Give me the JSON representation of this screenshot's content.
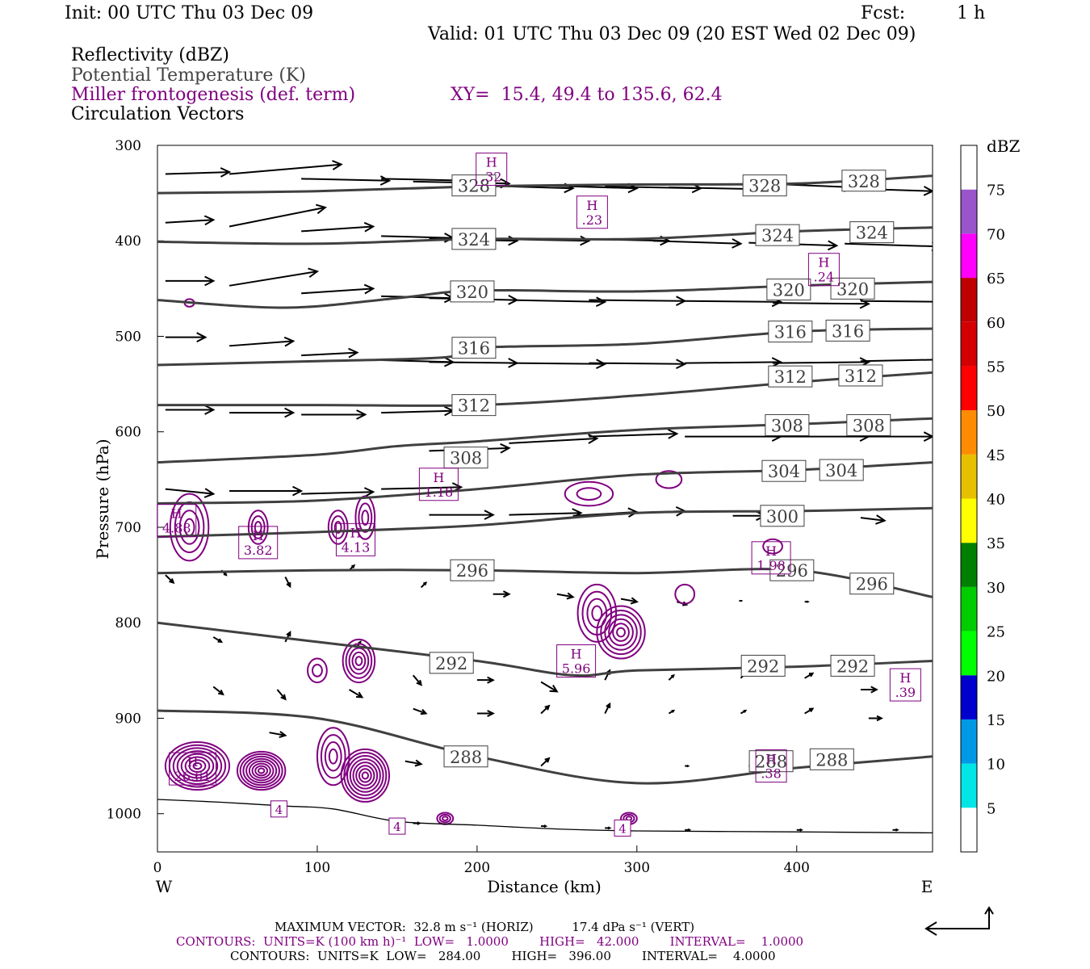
{
  "header": {
    "init": "Init: 00 UTC Thu 03 Dec 09",
    "fcst_label": "Fcst:",
    "fcst_value": "1 h",
    "valid": "Valid: 01 UTC Thu 03 Dec 09 (20 EST Wed 02 Dec 09)",
    "field_reflectivity": "Reflectivity (dBZ)",
    "field_theta": "Potential Temperature (K)",
    "field_frontogenesis": "Miller frontogenesis (def. term)",
    "xy_range": "XY=  15.4, 49.4 to 135.6, 62.4",
    "field_vectors": "Circulation Vectors"
  },
  "colors": {
    "theta_contour": "#404040",
    "frontogenesis_contour": "#800080",
    "vectors": "#000000",
    "background": "#ffffff"
  },
  "chart_data": {
    "type": "cross-section",
    "xlabel": "Distance (km)",
    "ylabel": "Pressure (hPa)",
    "xlim": [
      0,
      485
    ],
    "ylim": [
      1040,
      300
    ],
    "x_ticks": [
      "0",
      "100",
      "200",
      "300",
      "400"
    ],
    "y_ticks": [
      "300",
      "400",
      "500",
      "600",
      "700",
      "800",
      "900",
      "1000"
    ],
    "x_end_labels": {
      "left": "W",
      "right": "E"
    },
    "theta_contours": [
      {
        "label": "328",
        "points": [
          [
            0,
            350
          ],
          [
            100,
            348
          ],
          [
            200,
            343
          ],
          [
            300,
            341
          ],
          [
            400,
            340
          ],
          [
            485,
            332
          ]
        ],
        "labels_at": [
          [
            198,
            342
          ],
          [
            380,
            342
          ],
          [
            442,
            337
          ]
        ]
      },
      {
        "label": "324",
        "points": [
          [
            0,
            401
          ],
          [
            100,
            403
          ],
          [
            200,
            398
          ],
          [
            300,
            398
          ],
          [
            400,
            390
          ],
          [
            485,
            386
          ]
        ],
        "labels_at": [
          [
            198,
            398
          ],
          [
            388,
            394
          ],
          [
            447,
            391
          ]
        ]
      },
      {
        "label": "320",
        "points": [
          [
            0,
            462
          ],
          [
            80,
            470
          ],
          [
            150,
            460
          ],
          [
            200,
            452
          ],
          [
            300,
            453
          ],
          [
            400,
            447
          ],
          [
            485,
            443
          ]
        ],
        "labels_at": [
          [
            197,
            453
          ],
          [
            395,
            451
          ],
          [
            435,
            450
          ]
        ]
      },
      {
        "label": "316",
        "points": [
          [
            0,
            530
          ],
          [
            100,
            526
          ],
          [
            180,
            522
          ],
          [
            200,
            512
          ],
          [
            300,
            508
          ],
          [
            400,
            495
          ],
          [
            485,
            492
          ]
        ],
        "labels_at": [
          [
            198,
            512
          ],
          [
            396,
            495
          ],
          [
            432,
            494
          ]
        ]
      },
      {
        "label": "312",
        "points": [
          [
            0,
            572
          ],
          [
            100,
            572
          ],
          [
            200,
            572
          ],
          [
            300,
            562
          ],
          [
            400,
            548
          ],
          [
            485,
            538
          ]
        ],
        "labels_at": [
          [
            198,
            572
          ],
          [
            396,
            542
          ],
          [
            440,
            541
          ]
        ]
      },
      {
        "label": "308",
        "points": [
          [
            0,
            632
          ],
          [
            100,
            624
          ],
          [
            150,
            615
          ],
          [
            200,
            610
          ],
          [
            300,
            598
          ],
          [
            400,
            592
          ],
          [
            485,
            586
          ]
        ],
        "labels_at": [
          [
            193,
            627
          ],
          [
            394,
            593
          ],
          [
            445,
            593
          ]
        ]
      },
      {
        "label": "304",
        "points": [
          [
            0,
            675
          ],
          [
            100,
            672
          ],
          [
            200,
            660
          ],
          [
            300,
            645
          ],
          [
            400,
            640
          ],
          [
            485,
            632
          ]
        ],
        "labels_at": [
          [
            392,
            641
          ],
          [
            428,
            640
          ]
        ]
      },
      {
        "label": "300",
        "points": [
          [
            0,
            710
          ],
          [
            100,
            705
          ],
          [
            200,
            698
          ],
          [
            300,
            685
          ],
          [
            400,
            683
          ],
          [
            485,
            680
          ]
        ],
        "labels_at": [
          [
            391,
            688
          ]
        ]
      },
      {
        "label": "296",
        "points": [
          [
            0,
            748
          ],
          [
            100,
            745
          ],
          [
            200,
            745
          ],
          [
            300,
            748
          ],
          [
            400,
            745
          ],
          [
            485,
            773
          ]
        ],
        "labels_at": [
          [
            197,
            745
          ],
          [
            397,
            745
          ],
          [
            447,
            759
          ]
        ]
      },
      {
        "label": "292",
        "points": [
          [
            0,
            800
          ],
          [
            100,
            820
          ],
          [
            200,
            840
          ],
          [
            260,
            855
          ],
          [
            300,
            850
          ],
          [
            400,
            846
          ],
          [
            485,
            840
          ]
        ],
        "labels_at": [
          [
            184,
            842
          ],
          [
            379,
            845
          ],
          [
            435,
            845
          ]
        ]
      },
      {
        "label": "288",
        "points": [
          [
            0,
            892
          ],
          [
            100,
            900
          ],
          [
            200,
            940
          ],
          [
            300,
            968
          ],
          [
            400,
            952
          ],
          [
            485,
            940
          ]
        ],
        "labels_at": [
          [
            193,
            940
          ],
          [
            384,
            945
          ],
          [
            422,
            943
          ]
        ]
      }
    ],
    "frontogenesis_maxima": [
      {
        "label": ".32",
        "x": 209,
        "p": 325
      },
      {
        "label": ".23",
        "x": 272,
        "p": 370
      },
      {
        "label": ".24",
        "x": 417,
        "p": 430
      },
      {
        "label": "1.18",
        "x": 176,
        "p": 655
      },
      {
        "label": "4.88",
        "x": 12,
        "p": 693
      },
      {
        "label": "3.82",
        "x": 63,
        "p": 716
      },
      {
        "label": "4.13",
        "x": 124,
        "p": 713
      },
      {
        "label": "1.98",
        "x": 384,
        "p": 732
      },
      {
        "label": "5.96",
        "x": 262,
        "p": 840
      },
      {
        "label": ".39",
        "x": 468,
        "p": 865
      },
      {
        "label": "26.61",
        "x": 22,
        "p": 953
      },
      {
        "label": ".38",
        "x": 384,
        "p": 950
      },
      {
        "label": "4",
        "x": 76,
        "p": 995
      },
      {
        "label": "4",
        "x": 150,
        "p": 1013
      },
      {
        "label": "4",
        "x": 291,
        "p": 1015
      }
    ],
    "colorbar": {
      "title": "dBZ",
      "labels": [
        "5",
        "10",
        "15",
        "20",
        "25",
        "30",
        "35",
        "40",
        "45",
        "50",
        "55",
        "60",
        "65",
        "70",
        "75"
      ],
      "colors": [
        "#ffffff",
        "#00e5e5",
        "#0099e6",
        "#0000cc",
        "#00ff00",
        "#00cc00",
        "#008000",
        "#ffff00",
        "#e6bf00",
        "#ff8c00",
        "#ff0000",
        "#d40000",
        "#bf0000",
        "#ff00ff",
        "#9955c9",
        "#ffffff"
      ]
    }
  },
  "footer": {
    "max_vector": "MAXIMUM VECTOR:  32.8 m s⁻¹ (HORIZ)          17.4 dPa s⁻¹ (VERT)",
    "contours_fronto": "CONTOURS:  UNITS=K (100 km h)⁻¹  LOW=   1.0000        HIGH=   42.000        INTERVAL=    1.0000",
    "contours_theta": "CONTOURS:  UNITS=K  LOW=   284.00        HIGH=   396.00        INTERVAL=    4.0000"
  }
}
